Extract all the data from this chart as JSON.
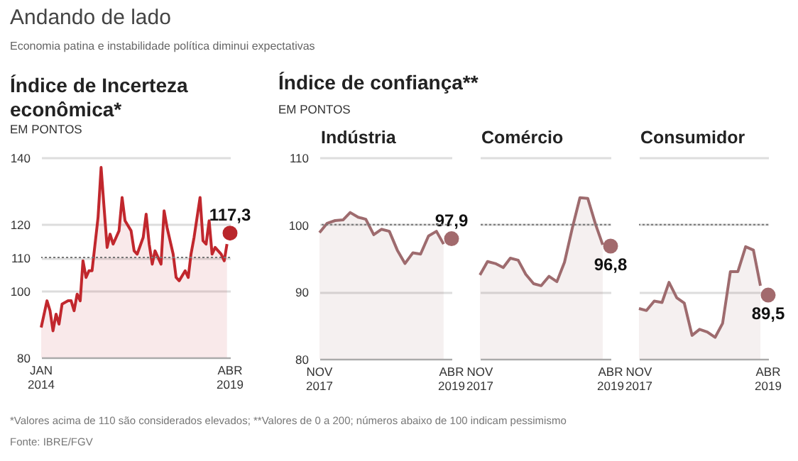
{
  "chart_data": [
    {
      "type": "other",
      "title": "Andando de lado",
      "subtitle": "Economia patina e instabilidade política diminui expectativas",
      "annotations": [
        "*Valores acima de 110 são considerados elevados; **Valores de 0 a 200; números abaixo de 100 indicam pessimismo",
        "Fonte: IBRE/FGV"
      ]
    },
    {
      "type": "area",
      "title": "Índice de Incerteza econômica*",
      "ylabel": "EM PONTOS",
      "xlim": [
        "2014-01",
        "2019-04"
      ],
      "xticks": [
        {
          "value": "2014-01",
          "label": "JAN 2014"
        },
        {
          "value": "2019-04",
          "label": "ABR 2019"
        }
      ],
      "ylim": [
        80,
        140
      ],
      "yticks": [
        80,
        100,
        110,
        120,
        140
      ],
      "grid": "y",
      "ref_lines": [
        {
          "axis": "y",
          "value": 110,
          "color": "#777777",
          "line_style": "dotted"
        }
      ],
      "series": [
        {
          "type": "area",
          "color": "#c1272d",
          "x": [
            "2014-01",
            "2014-03",
            "2014-04",
            "2014-05",
            "2014-06",
            "2014-07",
            "2014-08",
            "2014-10",
            "2014-11",
            "2014-12",
            "2015-01",
            "2015-02",
            "2015-03",
            "2015-04",
            "2015-05",
            "2015-06",
            "2015-08",
            "2015-09",
            "2015-10",
            "2015-11",
            "2015-12",
            "2016-01",
            "2016-03",
            "2016-04",
            "2016-05",
            "2016-07",
            "2016-08",
            "2016-09",
            "2016-11",
            "2016-12",
            "2017-01",
            "2017-02",
            "2017-03",
            "2017-05",
            "2017-06",
            "2017-07",
            "2017-09",
            "2017-10",
            "2017-11",
            "2018-01",
            "2018-02",
            "2018-03",
            "2018-04",
            "2018-06",
            "2018-07",
            "2018-08",
            "2018-09",
            "2018-10",
            "2018-11",
            "2019-01",
            "2019-02",
            "2019-03"
          ],
          "values": [
            89,
            97,
            94,
            88,
            93,
            90,
            96,
            97,
            97,
            94,
            99,
            97,
            109,
            104,
            106,
            106,
            122,
            137,
            125,
            113,
            117,
            114,
            118,
            128,
            121,
            118,
            112,
            111,
            116,
            123,
            114,
            108,
            112,
            108,
            124,
            119,
            111,
            104,
            103,
            106,
            104,
            111,
            116,
            128,
            115,
            114,
            121,
            111,
            113,
            111,
            109,
            114
          ]
        },
        {
          "type": "scatter",
          "color": "#b9262b",
          "x": [
            "2019-04"
          ],
          "values": [
            117.3
          ],
          "value_labels": [
            "117,3"
          ]
        }
      ]
    },
    {
      "type": "area",
      "title": "Índice de confiança**",
      "subtitle": "Indústria",
      "ylabel": "EM PONTOS",
      "xlim": [
        "2017-11",
        "2019-04"
      ],
      "xticks": [
        {
          "value": "2017-11",
          "label": "NOV 2017"
        },
        {
          "value": "2019-04",
          "label": "ABR 2019"
        }
      ],
      "ylim": [
        80,
        110
      ],
      "yticks": [
        80,
        90,
        100,
        110
      ],
      "grid": "y",
      "ref_lines": [
        {
          "axis": "y",
          "value": 100,
          "color": "#777777",
          "line_style": "dotted"
        }
      ],
      "series": [
        {
          "type": "area",
          "color": "#9e6b6e",
          "x": [
            "2017-11",
            "2017-12",
            "2018-01",
            "2018-02",
            "2018-03",
            "2018-04",
            "2018-05",
            "2018-06",
            "2018-07",
            "2018-08",
            "2018-09",
            "2018-10",
            "2018-11",
            "2018-12",
            "2019-01",
            "2019-02",
            "2019-03"
          ],
          "values": [
            98.8,
            100.2,
            100.6,
            100.7,
            101.8,
            101.1,
            100.8,
            98.5,
            99.3,
            99,
            96.2,
            94.2,
            95.8,
            95.6,
            98.3,
            99,
            97.1
          ]
        },
        {
          "type": "scatter",
          "color": "#a26a6d",
          "x": [
            "2019-04"
          ],
          "values": [
            97.9
          ],
          "value_labels": [
            "97,9"
          ]
        }
      ]
    },
    {
      "type": "area",
      "subtitle": "Comércio",
      "xlim": [
        "2017-11",
        "2019-04"
      ],
      "xticks": [
        {
          "value": "2017-11",
          "label": "NOV 2017"
        },
        {
          "value": "2019-04",
          "label": "ABR 2019"
        }
      ],
      "ylim": [
        80,
        110
      ],
      "yticks": [
        80,
        90,
        100,
        110
      ],
      "grid": "y",
      "tick_labels": "x",
      "ref_lines": [
        {
          "axis": "y",
          "value": 100,
          "color": "#777777",
          "line_style": "dotted"
        }
      ],
      "series": [
        {
          "type": "area",
          "color": "#9e6b6e",
          "x": [
            "2017-11",
            "2017-12",
            "2018-01",
            "2018-02",
            "2018-03",
            "2018-04",
            "2018-05",
            "2018-06",
            "2018-07",
            "2018-08",
            "2018-09",
            "2018-10",
            "2018-11",
            "2018-12",
            "2019-01",
            "2019-02",
            "2019-03"
          ],
          "values": [
            92.5,
            94.5,
            94.2,
            93.6,
            95,
            94.7,
            92.6,
            91.2,
            90.9,
            92.3,
            91.5,
            94.4,
            99.5,
            104,
            103.9,
            100,
            97
          ]
        },
        {
          "type": "scatter",
          "color": "#a26a6d",
          "x": [
            "2019-04"
          ],
          "values": [
            96.8
          ],
          "value_labels": [
            "96,8"
          ]
        }
      ]
    },
    {
      "type": "area",
      "subtitle": "Consumidor",
      "xlim": [
        "2017-11",
        "2019-04"
      ],
      "xticks": [
        {
          "value": "2017-11",
          "label": "NOV 2017"
        },
        {
          "value": "2019-04",
          "label": "ABR 2019"
        }
      ],
      "ylim": [
        80,
        110
      ],
      "yticks": [
        80,
        90,
        100,
        110
      ],
      "grid": "y",
      "tick_labels": "x",
      "ref_lines": [
        {
          "axis": "y",
          "value": 100,
          "color": "#777777",
          "line_style": "dotted"
        }
      ],
      "series": [
        {
          "type": "area",
          "color": "#9e6b6e",
          "x": [
            "2017-11",
            "2017-12",
            "2018-01",
            "2018-02",
            "2018-03",
            "2018-04",
            "2018-05",
            "2018-06",
            "2018-07",
            "2018-08",
            "2018-09",
            "2018-10",
            "2018-11",
            "2018-12",
            "2019-01",
            "2019-02",
            "2019-03"
          ],
          "values": [
            87.5,
            87.2,
            88.6,
            88.4,
            91.4,
            89.1,
            88.3,
            83.5,
            84.4,
            84,
            83.2,
            85.3,
            93,
            93,
            96.7,
            96.2,
            90.9
          ]
        },
        {
          "type": "scatter",
          "color": "#a26a6d",
          "x": [
            "2019-04"
          ],
          "values": [
            89.5
          ],
          "value_labels": [
            "89,5"
          ]
        }
      ]
    }
  ]
}
